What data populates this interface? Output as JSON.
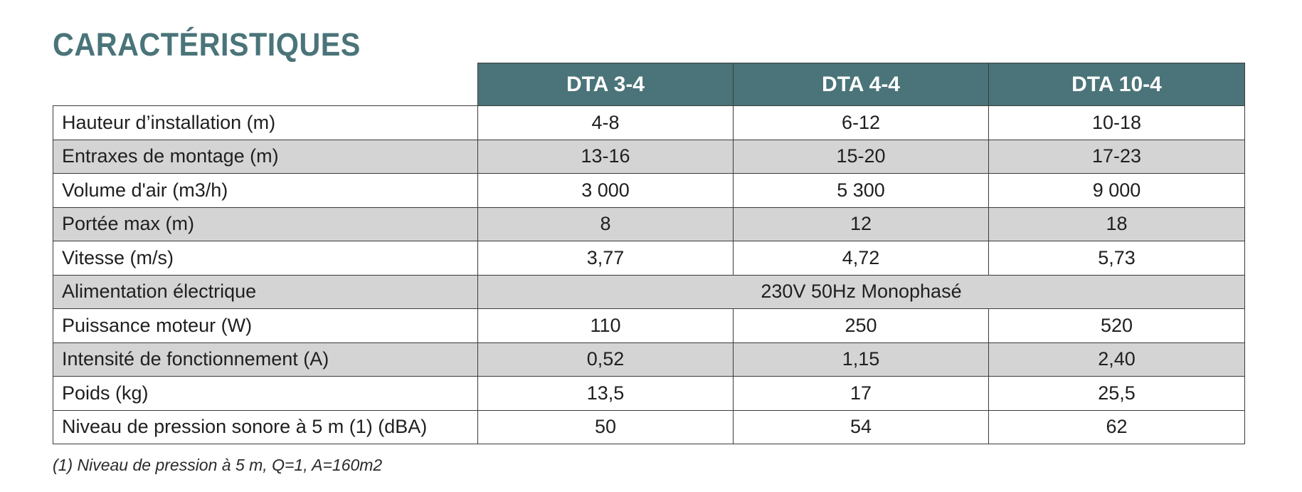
{
  "title": "CARACTÉRISTIQUES",
  "table": {
    "headers": [
      "DTA 3-4",
      "DTA 4-4",
      "DTA 10-4"
    ],
    "rows": [
      {
        "label": "Hauteur d’installation (m)",
        "values": [
          "4-8",
          "6-12",
          "10-18"
        ]
      },
      {
        "label": "Entraxes de montage (m)",
        "values": [
          "13-16",
          "15-20",
          "17-23"
        ]
      },
      {
        "label": "Volume d'air (m3/h)",
        "values": [
          "3 000",
          "5 300",
          "9 000"
        ]
      },
      {
        "label": "Portée max (m)",
        "values": [
          "8",
          "12",
          "18"
        ]
      },
      {
        "label": "Vitesse (m/s)",
        "values": [
          "3,77",
          "4,72",
          "5,73"
        ]
      },
      {
        "label": "Alimentation électrique",
        "merged_value": "230V 50Hz Monophasé"
      },
      {
        "label": "Puissance moteur (W)",
        "values": [
          "110",
          "250",
          "520"
        ]
      },
      {
        "label": "Intensité de fonctionnement (A)",
        "values": [
          "0,52",
          "1,15",
          "2,40"
        ]
      },
      {
        "label": "Poids (kg)",
        "values": [
          "13,5",
          "17",
          "25,5"
        ]
      },
      {
        "label": "Niveau de pression sonore à 5 m (1) (dBA)",
        "values": [
          "50",
          "54",
          "62"
        ]
      }
    ]
  },
  "footnote": "(1) Niveau de pression à 5 m, Q=1, A=160m2",
  "colors": {
    "header_bg": "#4a7479",
    "title": "#4a7479",
    "shaded_row": "#d4d4d5",
    "border": "#3b3b3b"
  }
}
